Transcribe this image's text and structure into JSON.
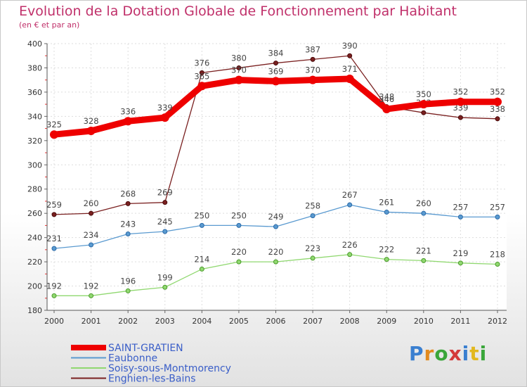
{
  "title": "Evolution de la Dotation Globale de Fonctionnement par Habitant",
  "subtitle": "(en € et par an)",
  "logo": {
    "letters": [
      "P",
      "r",
      "o",
      "x",
      "i",
      "t",
      "i"
    ],
    "colors": [
      "#3a7fd0",
      "#e28a1e",
      "#3aa63a",
      "#d43a3a",
      "#3a7fd0",
      "#e2b81e",
      "#3aa63a"
    ]
  },
  "chart_data": {
    "type": "line",
    "x": [
      "2000",
      "2001",
      "2002",
      "2003",
      "2004",
      "2005",
      "2006",
      "2007",
      "2008",
      "2009",
      "2010",
      "2011",
      "2012"
    ],
    "ylim": [
      180,
      400
    ],
    "yticks": [
      180,
      200,
      220,
      240,
      260,
      280,
      300,
      320,
      340,
      360,
      380,
      400
    ],
    "grid": true,
    "legend_position": "bottom-left",
    "series": [
      {
        "name": "Enghien-les-Bains",
        "color": "#7a2020",
        "values": [
          259,
          260,
          268,
          269,
          376,
          380,
          384,
          387,
          390,
          348,
          343,
          339,
          338
        ]
      },
      {
        "name": "Soisy-sous-Montmorency",
        "color": "#90d870",
        "values": [
          192,
          192,
          196,
          199,
          214,
          220,
          220,
          223,
          226,
          222,
          221,
          219,
          218
        ]
      },
      {
        "name": "Eaubonne",
        "color": "#5a9ad0",
        "values": [
          231,
          234,
          243,
          245,
          250,
          250,
          249,
          258,
          267,
          261,
          260,
          257,
          257
        ]
      },
      {
        "name": "SAINT-GRATIEN",
        "color": "#ee0000",
        "values": [
          325,
          328,
          336,
          339,
          365,
          370,
          369,
          370,
          371,
          346,
          350,
          352,
          352
        ]
      }
    ],
    "legend_order": [
      "SAINT-GRATIEN",
      "Eaubonne",
      "Soisy-sous-Montmorency",
      "Enghien-les-Bains"
    ]
  }
}
